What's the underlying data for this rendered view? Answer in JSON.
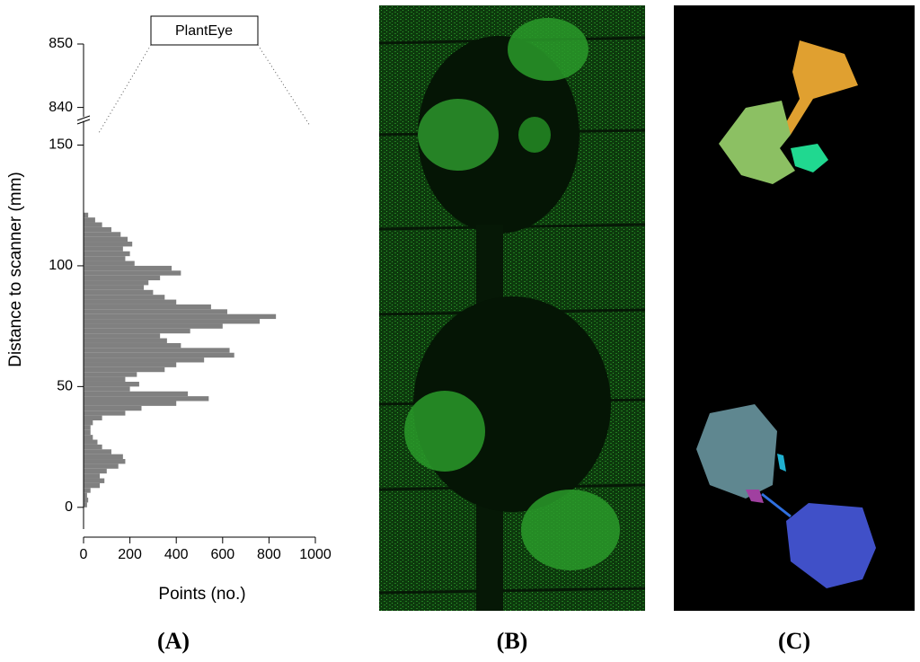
{
  "chart_data": {
    "type": "barh_histogram",
    "annotation": "PlantEye",
    "xlabel": "Points (no.)",
    "ylabel": "Distance to scanner (mm)",
    "color": "#808080",
    "bins": [
      0,
      2,
      4,
      6,
      8,
      10,
      12,
      14,
      16,
      18,
      20,
      22,
      24,
      26,
      28,
      30,
      32,
      34,
      36,
      38,
      40,
      42,
      44,
      46,
      48,
      50,
      52,
      54,
      56,
      58,
      60,
      62,
      64,
      66,
      68,
      70,
      72,
      74,
      76,
      78,
      80,
      82,
      84,
      86,
      88,
      90,
      92,
      94,
      96,
      98,
      100,
      102,
      104,
      106,
      108,
      110,
      112,
      114,
      116,
      118,
      120,
      122
    ],
    "values": [
      15,
      20,
      15,
      30,
      70,
      90,
      70,
      100,
      150,
      180,
      170,
      120,
      80,
      60,
      40,
      30,
      30,
      40,
      80,
      180,
      250,
      400,
      540,
      450,
      200,
      240,
      180,
      230,
      350,
      400,
      520,
      650,
      630,
      420,
      360,
      330,
      460,
      600,
      760,
      830,
      620,
      550,
      400,
      350,
      300,
      260,
      280,
      330,
      420,
      380,
      220,
      180,
      200,
      170,
      210,
      190,
      160,
      120,
      80,
      50,
      20
    ],
    "xlim": [
      0,
      1000
    ],
    "xticks": [
      0,
      200,
      400,
      600,
      800,
      1000
    ],
    "ylim": [
      -9,
      160
    ],
    "yticks": [
      0,
      50,
      100,
      150
    ],
    "y_upper_lim": [
      838.5,
      850
    ],
    "y_upper_ticks": [
      840,
      850
    ]
  },
  "panels": [
    {
      "label": "(A)"
    },
    {
      "label": "(B)"
    },
    {
      "label": "(C)"
    }
  ]
}
